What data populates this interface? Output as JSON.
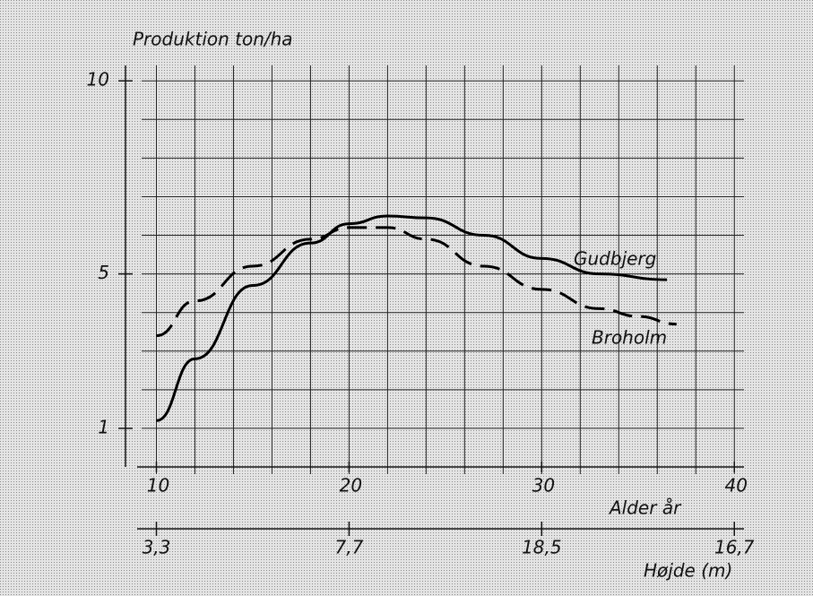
{
  "chart_data": {
    "type": "line",
    "title": "Produktion ton/ha",
    "x_label": "Alder år",
    "x2_label": "Højde (m)",
    "x2_ticks": [
      "3,3",
      "7,7",
      "18,5",
      "16,7"
    ],
    "xlim": [
      9,
      40.5
    ],
    "ylim": [
      0,
      10.4
    ],
    "xticks": [
      10,
      20,
      30,
      40
    ],
    "yticks": [
      1,
      5,
      10
    ],
    "xgrid": [
      10,
      12,
      14,
      16,
      18,
      20,
      22,
      24,
      26,
      28,
      30,
      32,
      34,
      36,
      38,
      40
    ],
    "ygrid": [
      1,
      2,
      3,
      4,
      5,
      6,
      7,
      8,
      9,
      10
    ],
    "series": [
      {
        "name": "Gudbjerg",
        "color": "#000000",
        "dash": false,
        "x": [
          10,
          12,
          15,
          18,
          20,
          22,
          24,
          27,
          30,
          33,
          36.5
        ],
        "values": [
          1.2,
          2.8,
          4.7,
          5.8,
          6.3,
          6.5,
          6.45,
          6.0,
          5.4,
          5.0,
          4.85
        ]
      },
      {
        "name": "Broholm",
        "color": "#000000",
        "dash": true,
        "x": [
          10,
          12,
          15,
          18,
          20,
          22,
          24,
          27,
          30,
          33,
          35,
          37
        ],
        "values": [
          3.4,
          4.3,
          5.2,
          5.9,
          6.2,
          6.2,
          5.9,
          5.2,
          4.6,
          4.1,
          3.9,
          3.7
        ]
      }
    ]
  }
}
